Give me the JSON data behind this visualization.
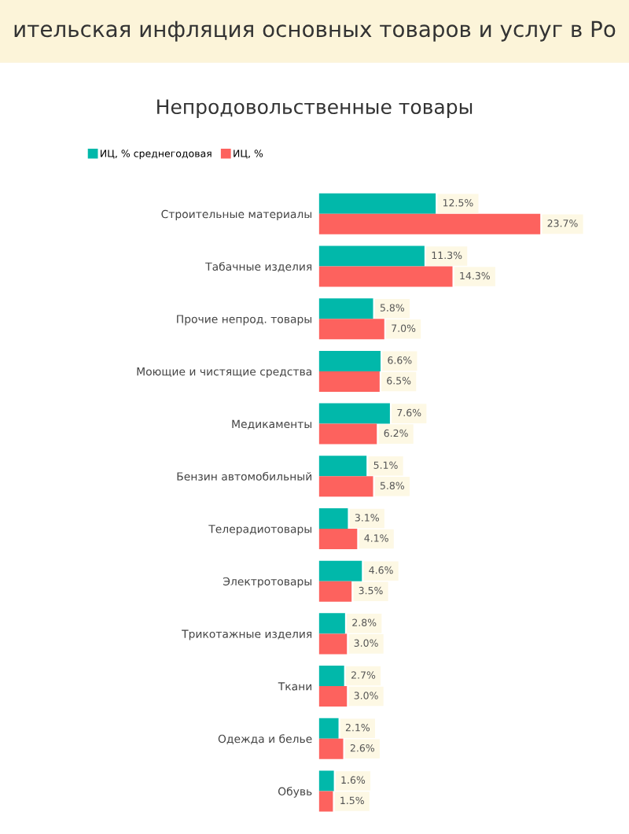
{
  "chart_data": {
    "type": "bar",
    "orientation": "horizontal",
    "title": "ительская инфляция основных товаров и услуг в Ро",
    "subtitle": "Непродовольственные товары",
    "categories": [
      "Строительные материалы",
      "Табачные изделия",
      "Прочие непрод. товары",
      "Моющие и чистящие средства",
      "Медикаменты",
      "Бензин автомобильный",
      "Телерадиотовары",
      "Электротовары",
      "Трикотажные изделия",
      "Ткани",
      "Одежда и белье",
      "Обувь"
    ],
    "series": [
      {
        "name": "ИЦ, % среднегодовая",
        "color": "#01b8aa",
        "values": [
          12.5,
          11.3,
          5.8,
          6.6,
          7.6,
          5.1,
          3.1,
          4.6,
          2.8,
          2.7,
          2.1,
          1.6
        ],
        "value_labels": [
          "12.5%",
          "11.3%",
          "5.8%",
          "6.6%",
          "7.6%",
          "5.1%",
          "3.1%",
          "4.6%",
          "2.8%",
          "2.7%",
          "2.1%",
          "1.6%"
        ]
      },
      {
        "name": "ИЦ, %",
        "color": "#fd625e",
        "values": [
          23.7,
          14.3,
          7.0,
          6.5,
          6.2,
          5.8,
          4.1,
          3.5,
          3.0,
          3.0,
          2.6,
          1.5
        ],
        "value_labels": [
          "23.7%",
          "14.3%",
          "7.0%",
          "6.5%",
          "6.2%",
          "5.8%",
          "4.1%",
          "3.5%",
          "3.0%",
          "3.0%",
          "2.6%",
          "1.5%"
        ]
      }
    ],
    "legend": "top left",
    "grid": false
  }
}
